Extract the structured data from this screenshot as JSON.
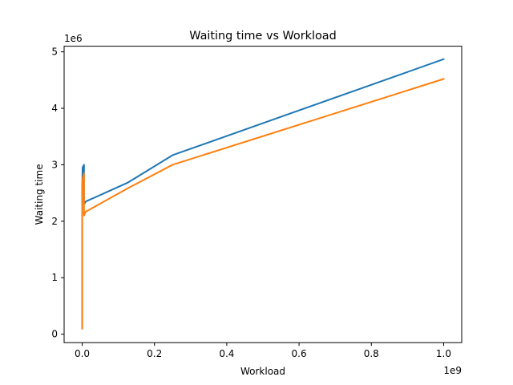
{
  "chart_data": {
    "type": "line",
    "title": "Waiting time vs Workload",
    "xlabel": "Workload",
    "ylabel": "Waiting time",
    "x_offset_label": "1e9",
    "y_offset_label": "1e6",
    "xlim": [
      -50000000,
      1050000000
    ],
    "ylim": [
      -150000,
      5100000
    ],
    "x_ticks": [
      {
        "value": 0,
        "label": "0.0"
      },
      {
        "value": 200000000,
        "label": "0.2"
      },
      {
        "value": 400000000,
        "label": "0.4"
      },
      {
        "value": 600000000,
        "label": "0.6"
      },
      {
        "value": 800000000,
        "label": "0.8"
      },
      {
        "value": 1000000000,
        "label": "1.0"
      }
    ],
    "y_ticks": [
      {
        "value": 0,
        "label": "0"
      },
      {
        "value": 1000000,
        "label": "1"
      },
      {
        "value": 2000000,
        "label": "2"
      },
      {
        "value": 3000000,
        "label": "3"
      },
      {
        "value": 4000000,
        "label": "4"
      },
      {
        "value": 5000000,
        "label": "5"
      }
    ],
    "grid": false,
    "series": [
      {
        "color": "#1f77b4",
        "x": [
          100,
          1000,
          10000,
          100000,
          1000000,
          5000000,
          5000000,
          10000000,
          125000000,
          250000000,
          1000000000
        ],
        "y": [
          100000,
          1200000,
          2000000,
          2600000,
          2950000,
          3000000,
          2300000,
          2350000,
          2680000,
          3170000,
          4870000
        ]
      },
      {
        "color": "#ff7f0e",
        "x": [
          100,
          1000,
          10000,
          100000,
          1000000,
          5000000,
          5000000,
          10000000,
          125000000,
          250000000,
          1000000000
        ],
        "y": [
          100000,
          1100000,
          1900000,
          2400000,
          2750000,
          2850000,
          2100000,
          2170000,
          2580000,
          3000000,
          4520000
        ]
      }
    ]
  }
}
